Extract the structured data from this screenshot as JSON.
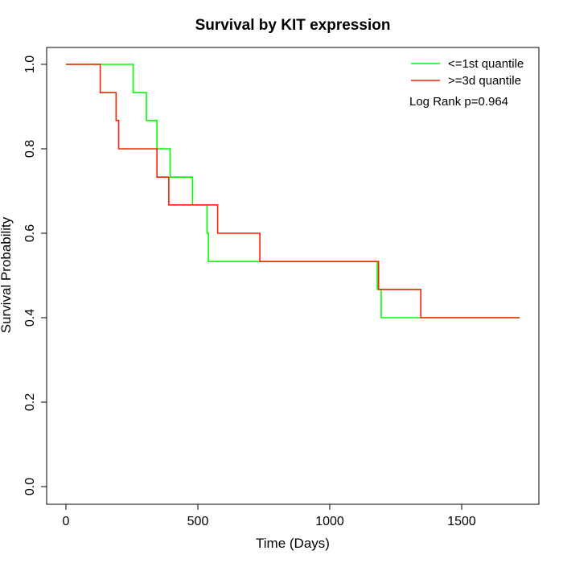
{
  "chart_data": {
    "type": "line",
    "title": "Survival by KIT expression",
    "xlabel": "Time (Days)",
    "ylabel": "Survival Probability",
    "xlim": [
      0,
      1800
    ],
    "ylim": [
      0,
      1
    ],
    "x_ticks": [
      "0",
      "500",
      "1000",
      "1500"
    ],
    "y_ticks": [
      "0.0",
      "0.2",
      "0.4",
      "0.6",
      "0.8",
      "1.0"
    ],
    "legend_position": "top-right",
    "annotation": "Log Rank p=0.964",
    "series": [
      {
        "name": "<=1st quantile",
        "color": "#00ff00",
        "x": [
          0,
          255,
          305,
          345,
          395,
          480,
          535,
          540,
          1180,
          1195,
          1720
        ],
        "y": [
          1.0,
          0.933,
          0.867,
          0.8,
          0.733,
          0.667,
          0.6,
          0.533,
          0.467,
          0.4,
          0.4
        ]
      },
      {
        "name": ">=3d quantile",
        "color": "#ff2000",
        "x": [
          0,
          130,
          190,
          200,
          345,
          390,
          575,
          735,
          1185,
          1345,
          1720
        ],
        "y": [
          1.0,
          0.933,
          0.867,
          0.8,
          0.733,
          0.667,
          0.6,
          0.533,
          0.467,
          0.4,
          0.4
        ]
      }
    ]
  }
}
